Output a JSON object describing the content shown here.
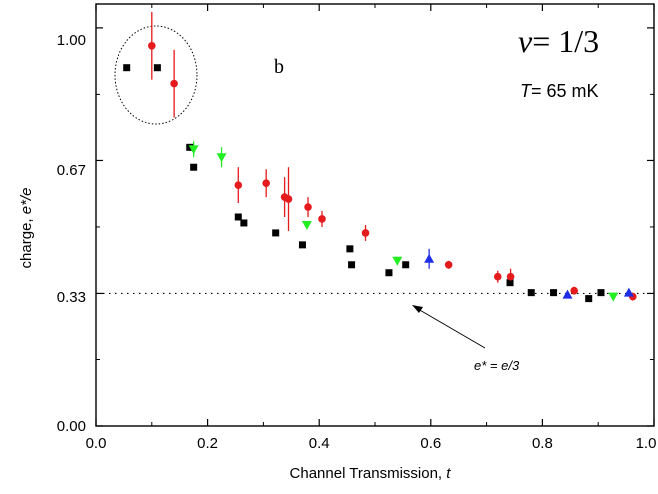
{
  "chart_data": {
    "type": "scatter",
    "xlabel_main": "Channel Transmission, ",
    "xlabel_var": "t",
    "ylabel_main": "charge, ",
    "ylabel_var": "e*/e",
    "xlim": [
      0.0,
      1.0
    ],
    "ylim": [
      0.0,
      1.06
    ],
    "x_ticks": [
      "0.0",
      "0.2",
      "0.4",
      "0.6",
      "0.8",
      "1.0"
    ],
    "y_ticks": [
      "0.00",
      "0.33",
      "0.67",
      "1.00"
    ],
    "panel_letter": "b",
    "nu_symbol": "ν",
    "nu_value": "= 1/3",
    "temp_symbol": "T",
    "temp_value": "= 65 mK",
    "reference_line": {
      "y": 0.333,
      "label": "e* = e/3",
      "label_var": "e*",
      "label_rest": " = e/3"
    },
    "colors": {
      "black": "#000000",
      "red": "#e41a1c",
      "green": "#22ee22",
      "blue": "#1f2ee6"
    },
    "series": [
      {
        "marker": "square",
        "color": "black",
        "points": [
          [
            0.055,
            0.9
          ],
          [
            0.11,
            0.9
          ],
          [
            0.168,
            0.7
          ],
          [
            0.175,
            0.65
          ],
          [
            0.255,
            0.525
          ],
          [
            0.265,
            0.51
          ],
          [
            0.322,
            0.485
          ],
          [
            0.37,
            0.455
          ],
          [
            0.455,
            0.445
          ],
          [
            0.458,
            0.405
          ],
          [
            0.525,
            0.385
          ],
          [
            0.555,
            0.405
          ],
          [
            0.742,
            0.36
          ],
          [
            0.78,
            0.335
          ],
          [
            0.82,
            0.335
          ],
          [
            0.883,
            0.32
          ],
          [
            0.905,
            0.335
          ]
        ]
      },
      {
        "marker": "circle",
        "color": "red",
        "points": [
          [
            0.1,
            0.955,
            0.085
          ],
          [
            0.14,
            0.86,
            0.085
          ],
          [
            0.255,
            0.605,
            0.045
          ],
          [
            0.305,
            0.61,
            0.035
          ],
          [
            0.338,
            0.575,
            0.05
          ],
          [
            0.345,
            0.57,
            0.08
          ],
          [
            0.38,
            0.55,
            0.025
          ],
          [
            0.405,
            0.52,
            0.02
          ],
          [
            0.483,
            0.485,
            0.02
          ],
          [
            0.632,
            0.405,
            0.01
          ],
          [
            0.72,
            0.375,
            0.015
          ],
          [
            0.743,
            0.375,
            0.02
          ],
          [
            0.857,
            0.34,
            0.01
          ],
          [
            0.962,
            0.325,
            0.01
          ]
        ]
      },
      {
        "marker": "triangle-down",
        "color": "green",
        "points": [
          [
            0.175,
            0.695,
            0.02
          ],
          [
            0.225,
            0.675,
            0.025
          ],
          [
            0.378,
            0.505,
            0.01
          ],
          [
            0.54,
            0.415,
            0.01
          ],
          [
            0.927,
            0.325,
            0.005
          ]
        ]
      },
      {
        "marker": "triangle-up",
        "color": "blue",
        "points": [
          [
            0.597,
            0.42,
            0.025
          ],
          [
            0.845,
            0.33,
            0.005
          ],
          [
            0.955,
            0.335,
            0.005
          ]
        ]
      }
    ]
  }
}
